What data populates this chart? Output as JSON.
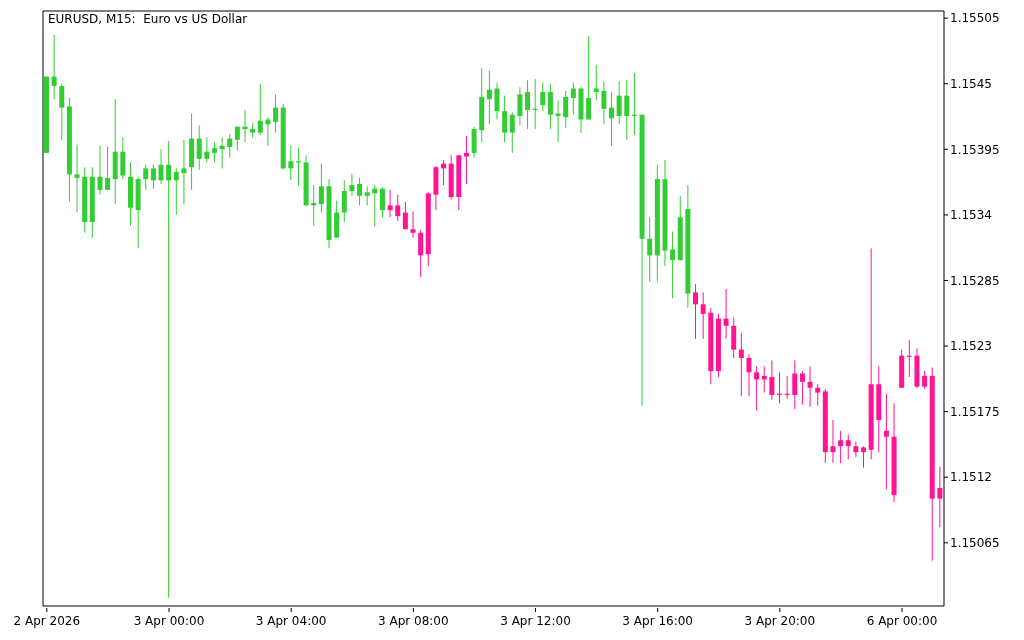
{
  "chart_data": {
    "type": "candlestick",
    "title": "EURUSD, M15:  Euro vs US Dollar",
    "categories": [
      "2 Apr 2026",
      null,
      null,
      null,
      null,
      null,
      null,
      null,
      null,
      null,
      null,
      null,
      null,
      null,
      null,
      null,
      "3 Apr 00:00",
      null,
      null,
      null,
      null,
      null,
      null,
      null,
      null,
      null,
      null,
      null,
      null,
      null,
      null,
      null,
      "3 Apr 04:00",
      null,
      null,
      null,
      null,
      null,
      null,
      null,
      null,
      null,
      null,
      null,
      null,
      null,
      null,
      null,
      "3 Apr 08:00",
      null,
      null,
      null,
      null,
      null,
      null,
      null,
      null,
      null,
      null,
      null,
      null,
      null,
      null,
      null,
      "3 Apr 12:00",
      null,
      null,
      null,
      null,
      null,
      null,
      null,
      null,
      null,
      null,
      null,
      null,
      null,
      null,
      null,
      "3 Apr 16:00",
      null,
      null,
      null,
      null,
      null,
      null,
      null,
      null,
      null,
      null,
      null,
      null,
      null,
      null,
      null,
      "3 Apr 20:00",
      null,
      null,
      null,
      null,
      null,
      null,
      null,
      null,
      null,
      null,
      null,
      null,
      null,
      null,
      null,
      "6 Apr 00:00",
      null,
      null,
      null,
      null,
      null
    ],
    "ohlc": [
      [
        1.15392,
        1.15456,
        1.15392,
        1.15456
      ],
      [
        1.15448,
        1.15491,
        1.15437,
        1.15456
      ],
      [
        1.1543,
        1.1545,
        1.15403,
        1.15448
      ],
      [
        1.15374,
        1.15438,
        1.15351,
        1.15431
      ],
      [
        1.15371,
        1.15399,
        1.15342,
        1.15374
      ],
      [
        1.15334,
        1.1538,
        1.15325,
        1.15372
      ],
      [
        1.15334,
        1.1538,
        1.15321,
        1.15372
      ],
      [
        1.15361,
        1.15398,
        1.15357,
        1.15372
      ],
      [
        1.15361,
        1.15397,
        1.15361,
        1.15371
      ],
      [
        1.1537,
        1.15437,
        1.15349,
        1.15393
      ],
      [
        1.15373,
        1.15405,
        1.1537,
        1.15393
      ],
      [
        1.15346,
        1.15384,
        1.15331,
        1.15372
      ],
      [
        1.15344,
        1.15372,
        1.15312,
        1.1537
      ],
      [
        1.1537,
        1.15382,
        1.15361,
        1.15379
      ],
      [
        1.15369,
        1.15382,
        1.15362,
        1.15379
      ],
      [
        1.15369,
        1.15395,
        1.15366,
        1.15382
      ],
      [
        1.15369,
        1.15402,
        1.15019,
        1.15382
      ],
      [
        1.15369,
        1.15379,
        1.1534,
        1.15376
      ],
      [
        1.15375,
        1.15403,
        1.15349,
        1.15379
      ],
      [
        1.1538,
        1.15425,
        1.15361,
        1.15404
      ],
      [
        1.15387,
        1.15415,
        1.15378,
        1.15404
      ],
      [
        1.15387,
        1.15405,
        1.15384,
        1.15393
      ],
      [
        1.15392,
        1.15401,
        1.15384,
        1.15396
      ],
      [
        1.15395,
        1.15405,
        1.15379,
        1.15398
      ],
      [
        1.15397,
        1.15408,
        1.15388,
        1.15404
      ],
      [
        1.15403,
        1.15414,
        1.15394,
        1.15414
      ],
      [
        1.15412,
        1.15428,
        1.15401,
        1.15414
      ],
      [
        1.15409,
        1.15417,
        1.15405,
        1.15412
      ],
      [
        1.15409,
        1.1545,
        1.15407,
        1.15419
      ],
      [
        1.15416,
        1.15422,
        1.15398,
        1.1542
      ],
      [
        1.15418,
        1.15441,
        1.15409,
        1.1543
      ],
      [
        1.15379,
        1.15433,
        1.15378,
        1.1543
      ],
      [
        1.15379,
        1.15398,
        1.15369,
        1.15385
      ],
      [
        1.15384,
        1.15396,
        1.15364,
        1.15385
      ],
      [
        1.15348,
        1.1539,
        1.15347,
        1.15384
      ],
      [
        1.15348,
        1.15365,
        1.15331,
        1.1535
      ],
      [
        1.15349,
        1.15383,
        1.15342,
        1.15364
      ],
      [
        1.15319,
        1.1537,
        1.15312,
        1.15364
      ],
      [
        1.15321,
        1.15352,
        1.15321,
        1.15342
      ],
      [
        1.15342,
        1.15369,
        1.15334,
        1.1536
      ],
      [
        1.1536,
        1.15375,
        1.15356,
        1.15365
      ],
      [
        1.15356,
        1.15371,
        1.15348,
        1.15366
      ],
      [
        1.15356,
        1.15364,
        1.15348,
        1.15359
      ],
      [
        1.15358,
        1.15365,
        1.1533,
        1.15362
      ],
      [
        1.15344,
        1.15363,
        1.15338,
        1.15362
      ],
      [
        1.15348,
        1.15361,
        1.15338,
        1.15344
      ],
      [
        1.15348,
        1.15357,
        1.15335,
        1.15339
      ],
      [
        1.15342,
        1.15351,
        1.15328,
        1.15328
      ],
      [
        1.15328,
        1.15343,
        1.15321,
        1.15325
      ],
      [
        1.15325,
        1.15327,
        1.15288,
        1.15306
      ],
      [
        1.15358,
        1.15359,
        1.15297,
        1.15307
      ],
      [
        1.1538,
        1.15381,
        1.15344,
        1.15357
      ],
      [
        1.15383,
        1.15386,
        1.15365,
        1.15379
      ],
      [
        1.15383,
        1.1539,
        1.15353,
        1.15355
      ],
      [
        1.1539,
        1.1539,
        1.15344,
        1.15355
      ],
      [
        1.15392,
        1.15406,
        1.15366,
        1.15389
      ],
      [
        1.15392,
        1.15414,
        1.15388,
        1.15412
      ],
      [
        1.15411,
        1.15463,
        1.15401,
        1.15439
      ],
      [
        1.15437,
        1.15461,
        1.15416,
        1.15445
      ],
      [
        1.15427,
        1.15451,
        1.1542,
        1.15446
      ],
      [
        1.15409,
        1.1544,
        1.15401,
        1.15427
      ],
      [
        1.15409,
        1.15426,
        1.15392,
        1.15424
      ],
      [
        1.15423,
        1.15447,
        1.15415,
        1.15441
      ],
      [
        1.15428,
        1.15453,
        1.15412,
        1.15443
      ],
      [
        1.15428,
        1.15454,
        1.15412,
        1.15429
      ],
      [
        1.15432,
        1.15451,
        1.15427,
        1.15443
      ],
      [
        1.15424,
        1.1545,
        1.15412,
        1.15443
      ],
      [
        1.15423,
        1.15436,
        1.15401,
        1.15425
      ],
      [
        1.15422,
        1.15444,
        1.15413,
        1.15439
      ],
      [
        1.15438,
        1.15451,
        1.15424,
        1.15446
      ],
      [
        1.1542,
        1.15447,
        1.15409,
        1.15446
      ],
      [
        1.1542,
        1.1549,
        1.1542,
        1.15438
      ],
      [
        1.15443,
        1.15466,
        1.15436,
        1.15446
      ],
      [
        1.15429,
        1.15452,
        1.15416,
        1.15444
      ],
      [
        1.15421,
        1.15443,
        1.15398,
        1.1543
      ],
      [
        1.15423,
        1.15452,
        1.15416,
        1.1544
      ],
      [
        1.15423,
        1.15453,
        1.15403,
        1.1544
      ],
      [
        1.15423,
        1.15459,
        1.15407,
        1.15424
      ],
      [
        1.1532,
        1.15424,
        1.1518,
        1.15424
      ],
      [
        1.15306,
        1.15338,
        1.15284,
        1.1532
      ],
      [
        1.15306,
        1.15382,
        1.15284,
        1.1537
      ],
      [
        1.1531,
        1.15386,
        1.15297,
        1.1537
      ],
      [
        1.15302,
        1.15326,
        1.1527,
        1.15311
      ],
      [
        1.15302,
        1.15356,
        1.15302,
        1.15338
      ],
      [
        1.15274,
        1.15365,
        1.15262,
        1.15345
      ],
      [
        1.15275,
        1.15282,
        1.15236,
        1.15265
      ],
      [
        1.15265,
        1.15275,
        1.15236,
        1.15257
      ],
      [
        1.15258,
        1.15262,
        1.15198,
        1.15209
      ],
      [
        1.15253,
        1.15257,
        1.15204,
        1.15209
      ],
      [
        1.15253,
        1.15278,
        1.15236,
        1.15247
      ],
      [
        1.15247,
        1.15254,
        1.1522,
        1.15227
      ],
      [
        1.15227,
        1.15241,
        1.15188,
        1.1522
      ],
      [
        1.1522,
        1.15223,
        1.15188,
        1.15208
      ],
      [
        1.15208,
        1.15213,
        1.15176,
        1.15202
      ],
      [
        1.15205,
        1.15213,
        1.15191,
        1.15202
      ],
      [
        1.15204,
        1.15218,
        1.15185,
        1.15189
      ],
      [
        1.1519,
        1.15208,
        1.15182,
        1.15189
      ],
      [
        1.1519,
        1.15205,
        1.15186,
        1.15189
      ],
      [
        1.15207,
        1.15218,
        1.15177,
        1.15189
      ],
      [
        1.15207,
        1.15209,
        1.15181,
        1.152
      ],
      [
        1.152,
        1.15213,
        1.15179,
        1.15195
      ],
      [
        1.15195,
        1.15198,
        1.1518,
        1.15191
      ],
      [
        1.15192,
        1.15194,
        1.15132,
        1.15141
      ],
      [
        1.15146,
        1.15168,
        1.15132,
        1.15141
      ],
      [
        1.15151,
        1.15159,
        1.15132,
        1.15146
      ],
      [
        1.15151,
        1.15156,
        1.15135,
        1.15146
      ],
      [
        1.15146,
        1.1515,
        1.15137,
        1.15141
      ],
      [
        1.15145,
        1.15146,
        1.15128,
        1.15141
      ],
      [
        1.15198,
        1.15312,
        1.15135,
        1.15143
      ],
      [
        1.15198,
        1.15213,
        1.15141,
        1.15168
      ],
      [
        1.15159,
        1.1519,
        1.1511,
        1.15154
      ],
      [
        1.15154,
        1.15182,
        1.15099,
        1.15105
      ],
      [
        1.15222,
        1.15227,
        1.15195,
        1.15195
      ],
      [
        1.15222,
        1.15235,
        1.15204,
        1.15221
      ],
      [
        1.15222,
        1.15228,
        1.15195,
        1.15196
      ],
      [
        1.15205,
        1.15209,
        1.15194,
        1.15196
      ],
      [
        1.15205,
        1.15212,
        1.1505,
        1.15102
      ],
      [
        1.15111,
        1.15129,
        1.15078,
        1.15102
      ]
    ],
    "colors": [
      "#32cd32",
      "#32cd32",
      "#32cd32",
      "#32cd32",
      "#32cd32",
      "#32cd32",
      "#32cd32",
      "#32cd32",
      "#32cd32",
      "#32cd32",
      "#32cd32",
      "#32cd32",
      "#32cd32",
      "#32cd32",
      "#32cd32",
      "#32cd32",
      "#32cd32",
      "#32cd32",
      "#32cd32",
      "#32cd32",
      "#32cd32",
      "#32cd32",
      "#32cd32",
      "#32cd32",
      "#32cd32",
      "#32cd32",
      "#32cd32",
      "#32cd32",
      "#32cd32",
      "#32cd32",
      "#32cd32",
      "#32cd32",
      "#32cd32",
      "#32cd32",
      "#32cd32",
      "#32cd32",
      "#32cd32",
      "#32cd32",
      "#32cd32",
      "#32cd32",
      "#32cd32",
      "#32cd32",
      "#32cd32",
      "#32cd32",
      "#32cd32",
      "#ff1493",
      "#ff1493",
      "#ff1493",
      "#ff1493",
      "#ff1493",
      "#ff1493",
      "#ff1493",
      "#ff1493",
      "#ff1493",
      "#ff1493",
      "#ff1493",
      "#32cd32",
      "#32cd32",
      "#32cd32",
      "#32cd32",
      "#32cd32",
      "#32cd32",
      "#32cd32",
      "#32cd32",
      "#32cd32",
      "#32cd32",
      "#32cd32",
      "#32cd32",
      "#32cd32",
      "#32cd32",
      "#32cd32",
      "#32cd32",
      "#32cd32",
      "#32cd32",
      "#32cd32",
      "#32cd32",
      "#32cd32",
      "#32cd32",
      "#32cd32",
      "#32cd32",
      "#32cd32",
      "#32cd32",
      "#32cd32",
      "#32cd32",
      "#32cd32",
      "#ff1493",
      "#ff1493",
      "#ff1493",
      "#ff1493",
      "#ff1493",
      "#ff1493",
      "#ff1493",
      "#ff1493",
      "#ff1493",
      "#ff1493",
      "#ff1493",
      "#ff1493",
      "#ff1493",
      "#ff1493",
      "#ff1493",
      "#ff1493",
      "#ff1493",
      "#ff1493",
      "#ff1493",
      "#ff1493",
      "#ff1493",
      "#ff1493",
      "#ff1493",
      "#ff1493",
      "#ff1493",
      "#ff1493",
      "#ff1493",
      "#ff1493",
      "#ff1493",
      "#ff1493",
      "#ff1493",
      "#ff1493",
      "#ff1493"
    ],
    "ylim": [
      1.15012,
      1.15511
    ],
    "yticks": [
      1.15065,
      1.1512,
      1.15175,
      1.1523,
      1.15285,
      1.1534,
      1.15395,
      1.1545,
      1.15505
    ]
  }
}
